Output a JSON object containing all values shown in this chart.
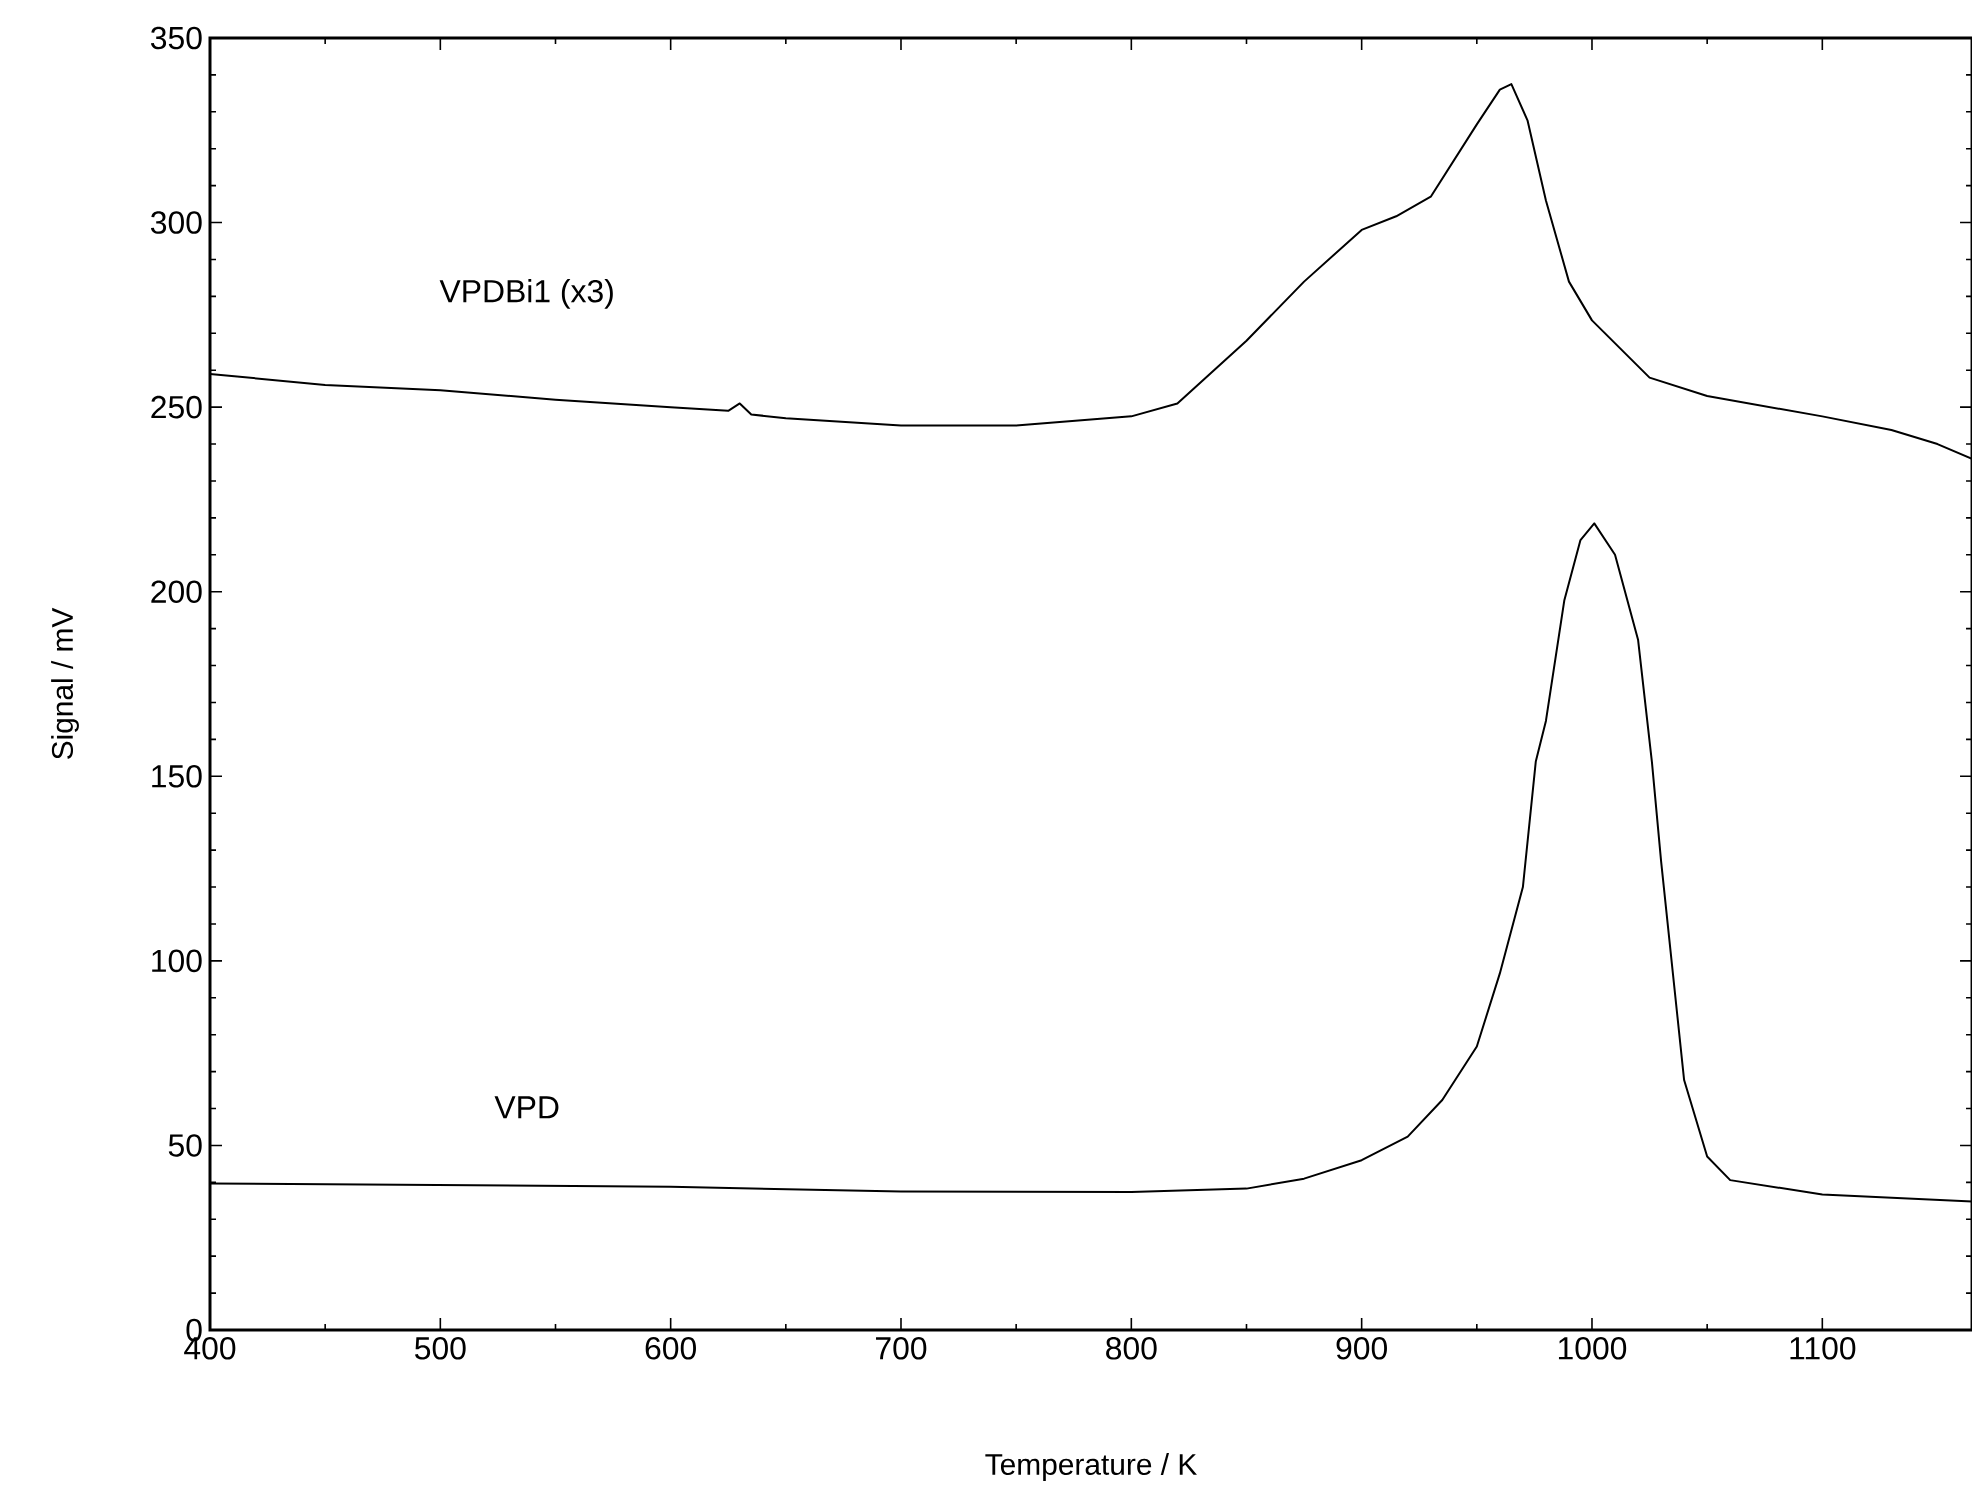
{
  "chart_data": {
    "type": "line",
    "xlabel": "Temperature / K",
    "ylabel": "Signal / mV",
    "xlim": [
      400,
      1165
    ],
    "ylim": [
      0,
      350
    ],
    "xticks": [
      400,
      500,
      600,
      700,
      800,
      900,
      1000,
      1100
    ],
    "yticks": [
      0,
      50,
      100,
      150,
      200,
      250,
      300,
      350
    ],
    "grid": false,
    "legend": false,
    "marker": "none",
    "line_style": "solid",
    "series": [
      {
        "name": "VPDBi1 (x3)",
        "color": "#000000",
        "x": [
          400,
          450,
          500,
          550,
          600,
          625,
          630,
          635,
          650,
          700,
          750,
          800,
          820,
          850,
          875,
          900,
          915,
          930,
          950,
          960,
          965,
          972,
          980,
          990,
          1000,
          1025,
          1050,
          1100,
          1130,
          1150,
          1165
        ],
        "values": [
          259,
          256,
          254.6,
          252,
          250,
          249,
          251,
          248,
          247,
          245,
          245,
          247.5,
          251,
          268,
          284,
          298,
          301.7,
          307,
          326.6,
          336,
          337.5,
          327.7,
          306,
          284,
          273.5,
          258,
          253,
          247.5,
          243.8,
          240,
          236
        ]
      },
      {
        "name": "VPD",
        "color": "#000000",
        "x": [
          400,
          600,
          700,
          800,
          850,
          875,
          900,
          920,
          935,
          950,
          960,
          970,
          975.6,
          980,
          988,
          995,
          1001,
          1010,
          1020,
          1026,
          1030,
          1040,
          1050,
          1060,
          1100,
          1165
        ],
        "values": [
          39.7,
          38.8,
          37.5,
          37.4,
          38.3,
          41,
          46,
          52.4,
          62.3,
          76.8,
          96.6,
          120,
          154,
          165,
          197.7,
          214,
          218.5,
          210,
          187,
          154,
          127,
          67.7,
          47,
          40.6,
          36.7,
          34.8
        ]
      }
    ]
  }
}
